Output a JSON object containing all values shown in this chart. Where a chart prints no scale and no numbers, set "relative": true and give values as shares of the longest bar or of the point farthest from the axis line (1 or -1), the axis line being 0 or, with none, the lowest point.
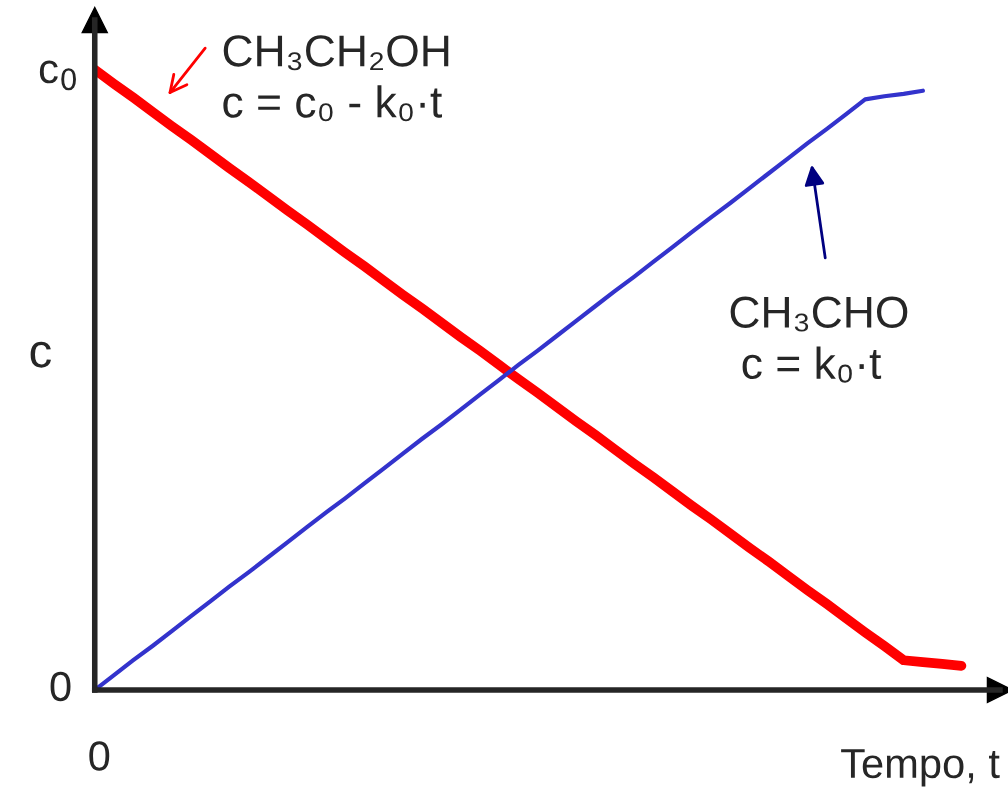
{
  "chart_data": {
    "type": "line",
    "xlabel": "Tempo, t",
    "ylabel": "c",
    "relative": true,
    "categories": [
      null,
      null,
      null,
      null,
      null,
      null,
      null,
      null,
      null,
      null,
      null,
      null,
      null,
      null,
      null,
      null,
      null,
      null,
      null,
      null,
      null,
      null,
      null,
      null,
      null,
      null,
      null,
      null,
      null,
      null,
      null,
      null,
      null,
      null,
      null,
      null,
      null,
      null,
      null,
      null,
      null,
      null,
      null,
      null,
      null,
      null
    ],
    "series": [
      {
        "color": "#ff0000",
        "values": [
          1,
          0.977,
          0.955,
          0.932,
          0.909,
          0.887,
          0.864,
          0.841,
          0.819,
          0.796,
          0.773,
          0.751,
          0.728,
          0.705,
          0.683,
          0.66,
          0.637,
          0.615,
          0.592,
          0.569,
          0.547,
          0.524,
          0.501,
          0.479,
          0.456,
          0.433,
          0.411,
          0.388,
          0.365,
          0.343,
          0.32,
          0.297,
          0.275,
          0.252,
          0.229,
          0.207,
          0.184,
          0.161,
          0.139,
          0.116,
          0.093,
          0.071,
          0.048,
          0.045,
          0.042,
          0.039
        ]
      },
      {
        "color": "#3333cc",
        "values": [
          0,
          0.024,
          0.048,
          0.071,
          0.095,
          0.119,
          0.143,
          0.167,
          0.19,
          0.214,
          0.238,
          0.262,
          0.286,
          0.309,
          0.333,
          0.357,
          0.381,
          0.405,
          0.428,
          0.452,
          0.476,
          0.5,
          0.524,
          0.547,
          0.571,
          0.595,
          0.619,
          0.643,
          0.666,
          0.69,
          0.714,
          0.738,
          0.762,
          0.785,
          0.809,
          0.833,
          0.857,
          0.881,
          0.904,
          0.928,
          0.952,
          0.957,
          0.961,
          0.966,
          null,
          null
        ]
      }
    ],
    "annotations": [
      "CH₃CH₂OH\nc = c₀ - k₀·t",
      "CH₃CHO\n c = k₀·t",
      "c$_{0}$",
      "0",
      "0"
    ],
    "legend": false,
    "marker": "none",
    "line_style": "solid"
  }
}
